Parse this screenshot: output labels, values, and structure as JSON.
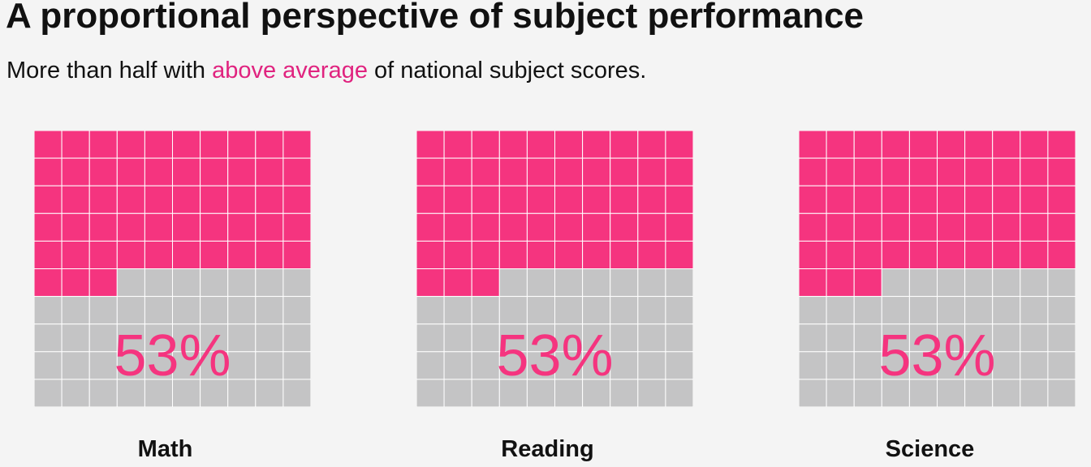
{
  "title": "A proportional perspective of subject performance",
  "subtitle": {
    "before": "More than half with ",
    "highlight": "above average",
    "after": " of national subject scores."
  },
  "colors": {
    "filled": "#f5347f",
    "empty": "#c4c4c5",
    "grid_line": "#ffffff",
    "highlight_text": "#e0237f",
    "percent_text": "#f5347f"
  },
  "chart_data": [
    {
      "type": "waffle",
      "category": "Math",
      "value": 53,
      "label": "53%",
      "grid": "10x10",
      "fill_order": "top-left, row by row"
    },
    {
      "type": "waffle",
      "category": "Reading",
      "value": 53,
      "label": "53%",
      "grid": "10x10",
      "fill_order": "top-left, row by row"
    },
    {
      "type": "waffle",
      "category": "Science",
      "value": 53,
      "label": "53%",
      "grid": "10x10",
      "fill_order": "top-left, row by row"
    }
  ]
}
